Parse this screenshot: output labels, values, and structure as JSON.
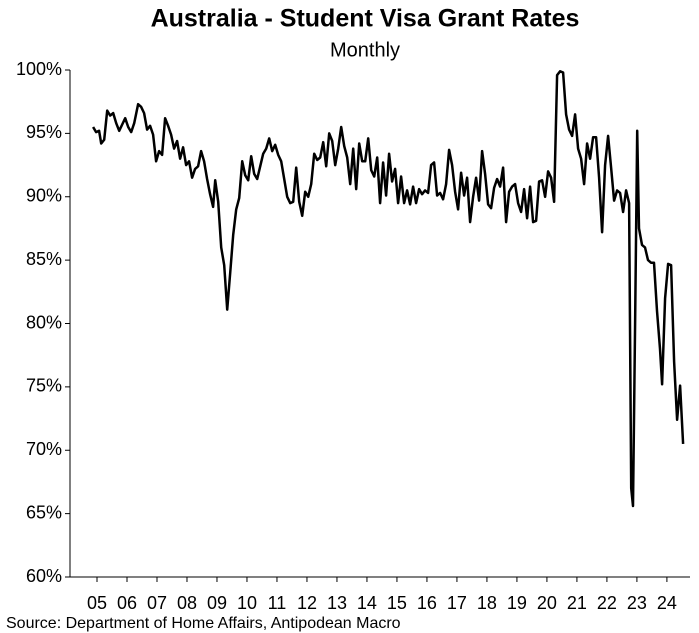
{
  "chart_data": {
    "type": "line",
    "title": "Australia - Student Visa Grant Rates",
    "subtitle": "Monthly",
    "source": "Source: Department of Home Affairs, Antipodean Macro",
    "color": "#000000",
    "x": [
      2005.37,
      2005.47,
      2005.57,
      2005.64,
      2005.74,
      2005.84,
      2005.94,
      2006.04,
      2006.14,
      2006.24,
      2006.34,
      2006.44,
      2006.54,
      2006.64,
      2006.74,
      2006.87,
      2006.97,
      2007.07,
      2007.17,
      2007.27,
      2007.37,
      2007.47,
      2007.57,
      2007.67,
      2007.77,
      2007.87,
      2007.97,
      2008.07,
      2008.17,
      2008.27,
      2008.37,
      2008.47,
      2008.57,
      2008.67,
      2008.77,
      2008.87,
      2008.97,
      2009.07,
      2009.17,
      2009.27,
      2009.37,
      2009.44,
      2009.54,
      2009.64,
      2009.74,
      2009.84,
      2009.94,
      2010.04,
      2010.14,
      2010.24,
      2010.34,
      2010.44,
      2010.54,
      2010.64,
      2010.74,
      2010.84,
      2010.94,
      2011.04,
      2011.14,
      2011.24,
      2011.34,
      2011.44,
      2011.54,
      2011.64,
      2011.74,
      2011.84,
      2011.94,
      2012.04,
      2012.14,
      2012.24,
      2012.34,
      2012.44,
      2012.54,
      2012.64,
      2012.74,
      2012.84,
      2012.94,
      2013.04,
      2013.14,
      2013.24,
      2013.34,
      2013.44,
      2013.54,
      2013.64,
      2013.74,
      2013.84,
      2013.94,
      2014.04,
      2014.14,
      2014.24,
      2014.34,
      2014.44,
      2014.54,
      2014.64,
      2014.74,
      2014.84,
      2014.94,
      2015.04,
      2015.14,
      2015.24,
      2015.34,
      2015.44,
      2015.54,
      2015.64,
      2015.74,
      2015.84,
      2015.94,
      2016.04,
      2016.14,
      2016.24,
      2016.34,
      2016.44,
      2016.54,
      2016.64,
      2016.74,
      2016.84,
      2016.94,
      2017.04,
      2017.14,
      2017.24,
      2017.34,
      2017.44,
      2017.54,
      2017.64,
      2017.74,
      2017.84,
      2017.94,
      2018.04,
      2018.14,
      2018.24,
      2018.34,
      2018.44,
      2018.54,
      2018.64,
      2018.74,
      2018.84,
      2018.94,
      2019.04,
      2019.14,
      2019.24,
      2019.34,
      2019.44,
      2019.54,
      2019.64,
      2019.74,
      2019.84,
      2019.94,
      2020.04,
      2020.14,
      2020.24,
      2020.34,
      2020.44,
      2020.54,
      2020.64,
      2020.74,
      2020.84,
      2020.94,
      2021.04,
      2021.14,
      2021.24,
      2021.34,
      2021.44,
      2021.54,
      2021.64,
      2021.74,
      2021.84,
      2021.94,
      2022.04,
      2022.14,
      2022.24,
      2022.34,
      2022.44,
      2022.54,
      2022.64,
      2022.74,
      2022.84,
      2022.94,
      2023.04,
      2023.14,
      2023.24,
      2023.31,
      2023.37,
      2023.44,
      2023.51,
      2023.57,
      2023.67,
      2023.77,
      2023.87,
      2023.97,
      2024.07,
      2024.17,
      2024.27,
      2024.34,
      2024.44,
      2024.54,
      2024.64,
      2024.74,
      2024.84,
      2024.94,
      2025.04
    ],
    "values": [
      95.5,
      95.1,
      95.2,
      94.2,
      94.5,
      96.8,
      96.4,
      96.6,
      95.8,
      95.2,
      95.7,
      96.2,
      95.5,
      95.1,
      95.8,
      97.3,
      97.1,
      96.6,
      95.3,
      95.6,
      94.9,
      92.8,
      93.6,
      93.3,
      96.2,
      95.6,
      94.9,
      93.8,
      94.4,
      93.0,
      93.9,
      92.5,
      92.8,
      91.5,
      92.2,
      92.4,
      93.6,
      92.8,
      91.4,
      90.2,
      89.2,
      91.3,
      89.6,
      86.0,
      84.6,
      81.1,
      84.0,
      87.0,
      89.0,
      89.9,
      92.8,
      91.7,
      91.3,
      93.2,
      91.8,
      91.4,
      92.4,
      93.4,
      93.8,
      94.6,
      93.6,
      94.1,
      93.3,
      92.8,
      91.4,
      90.0,
      89.5,
      89.6,
      92.3,
      89.6,
      88.5,
      90.4,
      90.0,
      91.0,
      93.4,
      92.9,
      93.1,
      94.3,
      92.4,
      95.0,
      94.4,
      92.5,
      93.8,
      95.5,
      94.0,
      93.1,
      91.0,
      93.8,
      90.6,
      94.2,
      92.8,
      92.8,
      94.6,
      92.1,
      91.6,
      93.1,
      89.5,
      92.7,
      90.1,
      93.4,
      91.2,
      92.2,
      89.5,
      91.6,
      89.5,
      90.5,
      89.4,
      90.8,
      89.5,
      90.6,
      90.2,
      90.5,
      90.3,
      92.5,
      92.7,
      90.1,
      90.3,
      89.8,
      91.0,
      93.7,
      92.5,
      90.4,
      89.0,
      91.9,
      90.1,
      91.5,
      88.0,
      90.0,
      91.5,
      89.7,
      93.6,
      91.8,
      89.4,
      89.1,
      90.7,
      91.4,
      90.8,
      92.3,
      88.0,
      90.4,
      90.8,
      91.0,
      89.5,
      88.8,
      90.6,
      88.3,
      90.8,
      88.0,
      88.1,
      91.2,
      91.3,
      90.0,
      92.0,
      91.5,
      89.6,
      99.6,
      99.9,
      99.8,
      96.5,
      95.3,
      94.8,
      96.5,
      93.8,
      93.0,
      91.0,
      94.2,
      93.0,
      94.7,
      94.7,
      91.5,
      87.2,
      92.5,
      94.8,
      92.3,
      89.7,
      90.5,
      90.3,
      88.8,
      90.5,
      89.5,
      67.0,
      65.6,
      80.0,
      95.2,
      87.5,
      86.2,
      86.0,
      85.0,
      84.8,
      84.8,
      81.0,
      78.0,
      75.2,
      82.0,
      84.7,
      84.6,
      77.0,
      72.4,
      75.1,
      70.5
    ],
    "xlim": [
      2004.6,
      2025.27
    ],
    "xticks": [
      {
        "value": 2005.5,
        "label": "05"
      },
      {
        "value": 2006.5,
        "label": "06"
      },
      {
        "value": 2007.5,
        "label": "07"
      },
      {
        "value": 2008.5,
        "label": "08"
      },
      {
        "value": 2009.5,
        "label": "09"
      },
      {
        "value": 2010.5,
        "label": "10"
      },
      {
        "value": 2011.5,
        "label": "11"
      },
      {
        "value": 2012.5,
        "label": "12"
      },
      {
        "value": 2013.5,
        "label": "13"
      },
      {
        "value": 2014.5,
        "label": "14"
      },
      {
        "value": 2015.5,
        "label": "15"
      },
      {
        "value": 2016.5,
        "label": "16"
      },
      {
        "value": 2017.5,
        "label": "17"
      },
      {
        "value": 2018.5,
        "label": "18"
      },
      {
        "value": 2019.5,
        "label": "19"
      },
      {
        "value": 2020.5,
        "label": "20"
      },
      {
        "value": 2021.5,
        "label": "21"
      },
      {
        "value": 2022.5,
        "label": "22"
      },
      {
        "value": 2023.5,
        "label": "23"
      },
      {
        "value": 2024.5,
        "label": "24"
      }
    ],
    "ylim": [
      60,
      100
    ],
    "yticks": [
      {
        "value": 60,
        "label": "60%"
      },
      {
        "value": 65,
        "label": "65%"
      },
      {
        "value": 70,
        "label": "70%"
      },
      {
        "value": 75,
        "label": "75%"
      },
      {
        "value": 80,
        "label": "80%"
      },
      {
        "value": 85,
        "label": "85%"
      },
      {
        "value": 90,
        "label": "90%"
      },
      {
        "value": 95,
        "label": "95%"
      },
      {
        "value": 100,
        "label": "100%"
      }
    ],
    "grid": false
  }
}
